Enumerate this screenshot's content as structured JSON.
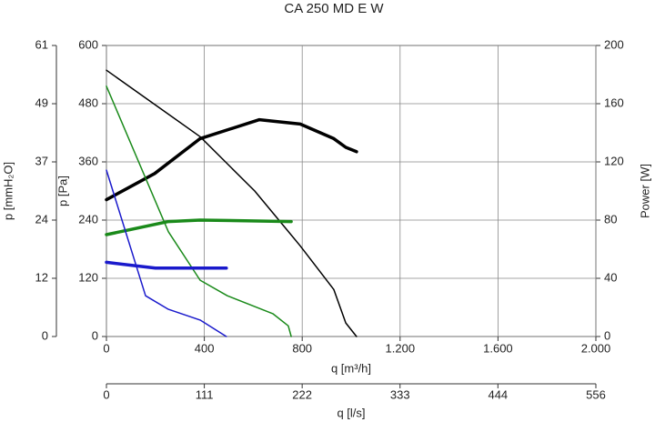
{
  "chart_data": {
    "type": "line",
    "title": "CA 250 MD E W",
    "ylabel": "p [Pa]",
    "y3label": "p [mmH₂O]",
    "y2label": "Power [W]",
    "xlabel": "q [m³/h]",
    "x2label": "q [l/s]",
    "xlim": [
      0,
      2000
    ],
    "xticks": [
      0,
      400,
      800,
      {
        "value": 1200,
        "label": "1.200"
      },
      {
        "value": 1600,
        "label": "1.600"
      },
      {
        "value": 2000,
        "label": "2.000"
      }
    ],
    "x2lim": [
      0,
      555.6
    ],
    "x2ticks": [
      0,
      {
        "value": 111.1,
        "label": "111"
      },
      {
        "value": 222.2,
        "label": "222"
      },
      {
        "value": 333.3,
        "label": "333"
      },
      {
        "value": 444.4,
        "label": "444"
      },
      {
        "value": 555.6,
        "label": "556"
      }
    ],
    "ylim": [
      0,
      600
    ],
    "yticks": [
      0,
      120,
      240,
      360,
      480,
      600
    ],
    "y3lim": [
      0,
      61.18
    ],
    "y3ticks": [
      0,
      {
        "value": 12.24,
        "label": "12"
      },
      {
        "value": 24.47,
        "label": "24"
      },
      {
        "value": 36.71,
        "label": "37"
      },
      {
        "value": 48.94,
        "label": "49"
      },
      {
        "value": 61.18,
        "label": "61"
      }
    ],
    "y2lim": [
      0,
      200
    ],
    "y2ticks": [
      0,
      40,
      80,
      120,
      160,
      200
    ],
    "grid": true,
    "series": [
      {
        "color": "#000000",
        "line_width": 1.5,
        "x": [
          0,
          383,
          606,
          792,
          929,
          978,
          1022
        ],
        "values": [
          549,
          412,
          300,
          187,
          97,
          28,
          0
        ]
      },
      {
        "color": "#000000",
        "line_width": 3.5,
        "axis": "y2",
        "x": [
          0,
          197,
          383,
          625,
          792,
          929,
          978,
          1022
        ],
        "values": [
          94,
          112,
          136,
          149,
          146,
          136,
          130,
          127
        ]
      },
      {
        "color": "#1a8a1a",
        "line_width": 1.5,
        "x": [
          0,
          253,
          383,
          494,
          680,
          743,
          755
        ],
        "values": [
          516,
          216,
          116,
          84,
          47,
          22,
          0
        ]
      },
      {
        "color": "#1a8a1a",
        "line_width": 3.5,
        "axis": "y2",
        "x": [
          0,
          253,
          383,
          755
        ],
        "values": [
          70,
          79,
          80,
          79
        ]
      },
      {
        "color": "#1a1acc",
        "line_width": 1.5,
        "x": [
          0,
          160,
          253,
          383,
          490
        ],
        "values": [
          343,
          84,
          56,
          34,
          0
        ]
      },
      {
        "color": "#1a1acc",
        "line_width": 3.5,
        "axis": "y2",
        "x": [
          0,
          100,
          200,
          490
        ],
        "values": [
          51,
          49,
          47,
          47
        ]
      }
    ]
  }
}
